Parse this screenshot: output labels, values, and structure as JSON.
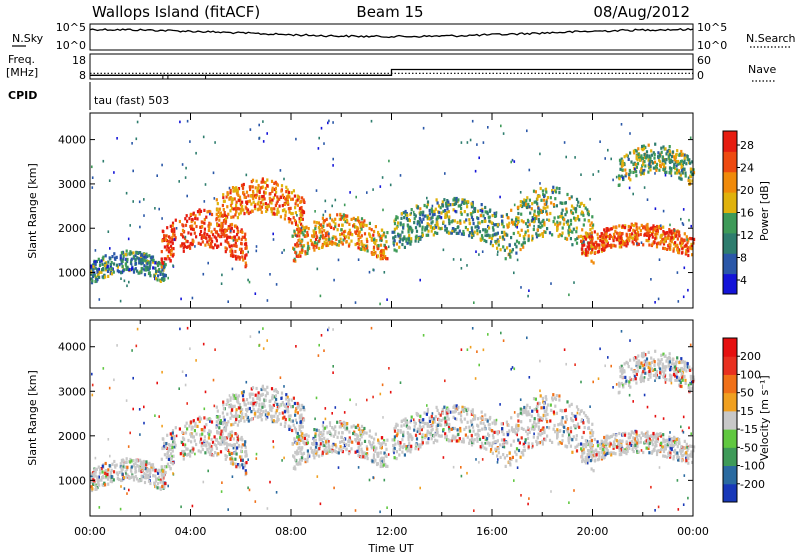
{
  "header": {
    "site": "Wallops Island (fitACF)",
    "beam": "Beam 15",
    "date": "08/Aug/2012"
  },
  "noise_panel": {
    "left_label": "N.Sky",
    "right_label": "N.Search",
    "left_ticks": [
      "10^5",
      "10^0"
    ],
    "right_ticks": [
      "10^5",
      "10^0"
    ]
  },
  "freq_panel": {
    "left_label_1": "Freq.",
    "left_label_2": "[MHz]",
    "right_label": "Nave",
    "left_ticks": [
      "18",
      "8"
    ],
    "right_ticks": [
      "60",
      "0"
    ],
    "freq_mhz": {
      "x_hours": [
        0,
        12,
        12,
        24
      ],
      "y": [
        10.5,
        10.5,
        14.3,
        14.3
      ]
    },
    "nave": {
      "x_hours": [
        0,
        24
      ],
      "y": [
        20,
        20
      ]
    }
  },
  "cpid": {
    "label": "CPID",
    "program": "tau (fast) 503"
  },
  "chart_data": [
    {
      "type": "heatmap",
      "name": "Power",
      "xlabel": "",
      "ylabel": "Slant Range [km]",
      "y_ticks": [
        "1000",
        "2000",
        "3000",
        "4000"
      ],
      "ylim": [
        200,
        4600
      ],
      "xlim_hours": [
        0,
        24
      ],
      "colorbar": {
        "label": "Power [dB]",
        "ticks": [
          "28",
          "24",
          "20",
          "16",
          "12",
          "8",
          "4"
        ],
        "range": [
          0,
          30
        ],
        "colors": [
          "#1414d8",
          "#2a57a8",
          "#2e7d6e",
          "#3e9a58",
          "#e0b20c",
          "#f08a0a",
          "#ee4a10",
          "#e61c10"
        ]
      },
      "features": [
        {
          "t_start": 0.0,
          "t_end": 3.0,
          "r_start": 800,
          "r_end": 1500,
          "dB": 10
        },
        {
          "t_start": 2.8,
          "t_end": 6.2,
          "r_start": 1200,
          "r_end": 2400,
          "dB": 26
        },
        {
          "t_start": 5.0,
          "t_end": 8.5,
          "r_start": 2000,
          "r_end": 3100,
          "dB": 22
        },
        {
          "t_start": 8.0,
          "t_end": 11.8,
          "r_start": 1300,
          "r_end": 2300,
          "dB": 20
        },
        {
          "t_start": 12.0,
          "t_end": 16.5,
          "r_start": 1500,
          "r_end": 2700,
          "dB": 12
        },
        {
          "t_start": 16.5,
          "t_end": 20.0,
          "r_start": 1300,
          "r_end": 2900,
          "dB": 14
        },
        {
          "t_start": 19.5,
          "t_end": 24.0,
          "r_start": 1400,
          "r_end": 2100,
          "dB": 24
        },
        {
          "t_start": 21.0,
          "t_end": 24.0,
          "r_start": 3000,
          "r_end": 3900,
          "dB": 14
        }
      ]
    },
    {
      "type": "heatmap",
      "name": "Velocity",
      "xlabel": "Time UT",
      "ylabel": "Slant Range [km]",
      "y_ticks": [
        "1000",
        "2000",
        "3000",
        "4000"
      ],
      "ylim": [
        200,
        4600
      ],
      "xlim_hours": [
        0,
        24
      ],
      "x_ticks": [
        "00:00",
        "04:00",
        "08:00",
        "12:00",
        "16:00",
        "20:00",
        "00:00"
      ],
      "colorbar": {
        "label": "Velocity [m s⁻¹]",
        "ticks": [
          "200",
          "100",
          "50",
          "15",
          "-15",
          "-50",
          "-100",
          "-200"
        ],
        "colors": [
          "#1838b8",
          "#2a6aa0",
          "#3e9a58",
          "#60c840",
          "#c8c8c8",
          "#f0a020",
          "#f07018",
          "#e83020",
          "#e61010"
        ]
      }
    }
  ],
  "colors": {
    "axis": "#000000",
    "ground_scatter": "#c8c8c8"
  }
}
